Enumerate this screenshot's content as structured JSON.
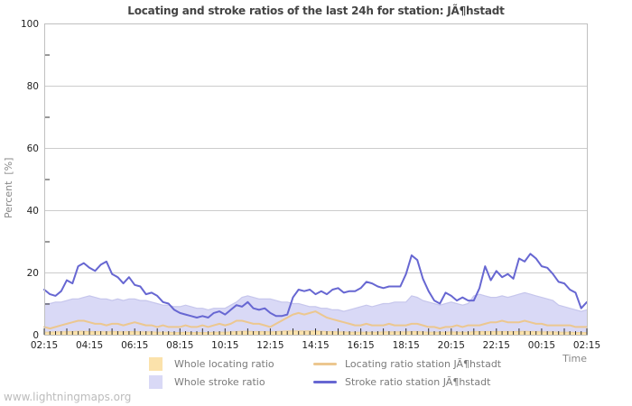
{
  "page": {
    "watermark": "www.lightningmaps.org"
  },
  "chart_data": {
    "type": "area-line-timeseries",
    "title": "Locating and stroke ratios of the last 24h for station: JÃ¶hstadt",
    "ylabel": "Percent  [%]",
    "xlabel": "Time",
    "ylim": [
      0,
      100
    ],
    "yticks_major": [
      0,
      20,
      40,
      60,
      80,
      100
    ],
    "yticks_minor": [
      10,
      30,
      50,
      70,
      90
    ],
    "x_tick_labels": [
      "02:15",
      "04:15",
      "06:15",
      "08:15",
      "10:15",
      "12:15",
      "14:15",
      "16:15",
      "18:15",
      "20:15",
      "22:15",
      "00:15",
      "02:15"
    ],
    "x_points_per_tick": 8,
    "grid": "horizontal-major-only",
    "legend_position": "bottom-center",
    "colors": {
      "grid": "#cccccc",
      "border": "#c0c0c0",
      "tick": "#333333",
      "tick_label": "#222222",
      "axis_title": "#888888",
      "legend_text": "#7a7a7a",
      "title": "#444444",
      "watermark": "#bcbcbc",
      "background": "#ffffff"
    },
    "draw_order": [
      1,
      0,
      2,
      3
    ],
    "series": [
      {
        "name": "Whole locating ratio",
        "type": "area",
        "color": "#fbe2ab",
        "edge": "#eed3a0",
        "values": [
          0.8,
          0.8,
          0.9,
          0.9,
          1,
          1,
          1.1,
          1.1,
          1,
          1,
          1,
          0.9,
          1,
          1,
          0.9,
          1,
          1,
          0.9,
          0.9,
          0.9,
          0.8,
          0.8,
          0.8,
          0.7,
          0.7,
          0.8,
          0.7,
          0.7,
          0.7,
          0.7,
          0.8,
          0.8,
          0.8,
          0.9,
          1,
          1.1,
          1.1,
          1,
          1,
          1,
          0.9,
          1,
          1.1,
          1.2,
          1.2,
          1.2,
          1.2,
          1.2,
          1.2,
          1.1,
          1,
          1,
          0.9,
          0.9,
          0.8,
          0.8,
          0.8,
          0.8,
          0.8,
          0.8,
          0.9,
          0.9,
          0.9,
          0.9,
          0.9,
          1,
          1,
          0.9,
          0.8,
          0.8,
          0.8,
          0.8,
          0.9,
          0.8,
          0.8,
          0.8,
          1,
          1,
          1,
          1,
          1,
          1,
          1,
          1,
          1,
          1.1,
          1,
          1,
          0.9,
          0.9,
          0.9,
          0.8,
          0.8,
          0.8,
          0.7,
          0.7,
          0.7
        ]
      },
      {
        "name": "Whole stroke ratio",
        "type": "area",
        "color": "#d9d9f6",
        "edge": "#c6c6ec",
        "values": [
          10,
          10,
          10.5,
          10.5,
          11,
          11.5,
          11.5,
          12,
          12.5,
          12,
          11.5,
          11.5,
          11,
          11.5,
          11,
          11.5,
          11.5,
          11,
          11,
          10.5,
          10,
          9.5,
          9.5,
          9,
          9,
          9.5,
          9,
          8.5,
          8.5,
          8,
          8.5,
          8.5,
          8.5,
          9.5,
          10.5,
          12,
          12.5,
          12,
          11.5,
          11.5,
          11.5,
          11,
          10.5,
          10.5,
          10,
          10,
          9.5,
          9,
          9,
          8.5,
          8.5,
          8,
          8,
          7.5,
          8,
          8.5,
          9,
          9.5,
          9,
          9.5,
          10,
          10,
          10.5,
          10.5,
          10.5,
          12.5,
          12,
          11,
          10.5,
          10,
          9.5,
          10,
          10.5,
          10,
          9.5,
          10,
          12.5,
          13,
          12.5,
          12,
          12,
          12.5,
          12,
          12.5,
          13,
          13.5,
          13,
          12.5,
          12,
          11.5,
          11,
          9.5,
          9,
          8.5,
          8,
          7.5,
          8
        ]
      },
      {
        "name": "Locating ratio station JÃ¶hstadt",
        "type": "line",
        "color": "#ecc78f",
        "values": [
          2.5,
          2,
          2.5,
          3,
          3.5,
          4,
          4.5,
          4.5,
          4,
          3.5,
          3.5,
          3,
          3.5,
          3.5,
          3,
          3.5,
          4,
          3.5,
          3,
          3,
          2.5,
          3,
          2.5,
          2.5,
          2.5,
          3,
          2.5,
          2.5,
          3,
          2.5,
          3,
          3.5,
          3,
          3.5,
          4.5,
          4.5,
          4,
          3.5,
          3.5,
          3,
          2.5,
          3.5,
          4.5,
          5.5,
          6.5,
          7,
          6.5,
          7,
          7.5,
          6.5,
          5.5,
          5,
          4.5,
          4,
          3.5,
          3,
          3,
          3.5,
          3,
          3,
          3,
          3.5,
          3,
          3,
          3,
          3.5,
          3.5,
          3,
          2.5,
          2.5,
          2,
          2.5,
          2.5,
          3,
          2.5,
          3,
          3,
          3,
          3.5,
          4,
          4,
          4.5,
          4,
          4,
          4,
          4.5,
          4,
          3.5,
          3.5,
          3,
          3,
          3,
          3,
          3,
          2.5,
          2.5,
          2.5
        ]
      },
      {
        "name": "Stroke ratio station JÃ¶hstadt",
        "type": "line",
        "color": "#6767d2",
        "values": [
          14.5,
          13,
          12.5,
          14,
          17.5,
          16.5,
          22,
          23,
          21.5,
          20.5,
          22.5,
          23.5,
          19.5,
          18.5,
          16.5,
          18.5,
          16,
          15.5,
          13,
          13.5,
          12.5,
          10.5,
          10,
          8,
          7,
          6.5,
          6,
          5.5,
          6,
          5.5,
          7,
          7.5,
          6.5,
          8,
          9.5,
          9,
          10.5,
          8.5,
          8,
          8.5,
          7,
          6,
          6,
          6.5,
          12,
          14.5,
          14,
          14.5,
          13,
          14,
          13,
          14.5,
          15,
          13.5,
          14,
          14,
          15,
          17,
          16.5,
          15.5,
          15,
          15.5,
          15.5,
          15.5,
          19.5,
          25.5,
          24,
          18,
          14,
          11,
          10,
          13.5,
          12.5,
          11,
          12,
          11,
          11,
          15,
          22,
          17.5,
          20.5,
          18.5,
          19.5,
          18,
          24.5,
          23.5,
          26,
          24.5,
          22,
          21.5,
          19.5,
          17,
          16.5,
          14.5,
          13.5,
          8.5,
          10.5
        ]
      }
    ]
  }
}
